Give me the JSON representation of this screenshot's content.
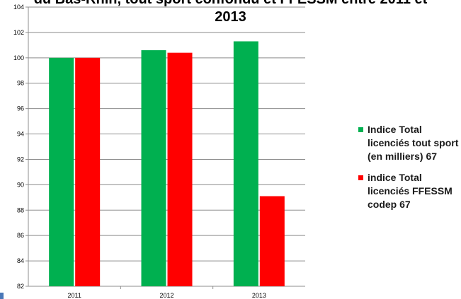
{
  "title": {
    "line1": "du Bas-Rhin, tout sport confondu et FFESSM entre 2011 et",
    "line2": "2013"
  },
  "chart_data": {
    "type": "bar",
    "categories": [
      "2011",
      "2012",
      "2013"
    ],
    "series": [
      {
        "name": "Indice Total licenciés tout sport (en milliers) 67",
        "color": "#00b050",
        "values": [
          100.0,
          100.6,
          101.3
        ]
      },
      {
        "name": "indice Total licenciés FFESSM codep 67",
        "color": "#ff0000",
        "values": [
          100.0,
          100.4,
          89.1
        ]
      }
    ],
    "ylim": [
      82,
      104
    ],
    "yticks": [
      "82",
      "84",
      "86",
      "88",
      "90",
      "92",
      "94",
      "96",
      "98",
      "100",
      "102",
      "104"
    ],
    "grid": true,
    "legend_position": "right"
  }
}
